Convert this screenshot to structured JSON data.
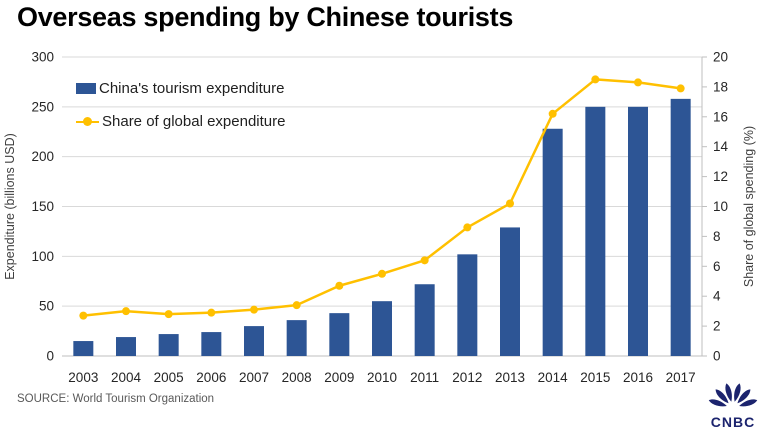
{
  "title": "Overseas spending by Chinese tourists",
  "source": "SOURCE: World Tourism Organization",
  "logo": {
    "text": "CNBC"
  },
  "colors": {
    "bar": "#2d5595",
    "line": "#ffc000",
    "grid": "#d9d9d9",
    "axis": "#bfbfbf",
    "tick_text": "#262626",
    "axis_title_text": "#3f3f3f",
    "source_text": "#595959",
    "logo_navy": "#1c246e",
    "title_text": "#000000"
  },
  "legend": [
    {
      "label": "China's tourism expenditure",
      "marker": "bar-swatch"
    },
    {
      "label": "Share of global expenditure",
      "marker": "line-dot-swatch"
    }
  ],
  "chart_data": {
    "type": "bar",
    "subtype": "bar+line dual axis",
    "title": "Overseas spending by Chinese tourists",
    "categories": [
      "2003",
      "2004",
      "2005",
      "2006",
      "2007",
      "2008",
      "2009",
      "2010",
      "2011",
      "2012",
      "2013",
      "2014",
      "2015",
      "2016",
      "2017"
    ],
    "series": [
      {
        "name": "China's tourism expenditure",
        "type": "bar",
        "axis": "left",
        "values": [
          15,
          19,
          22,
          24,
          30,
          36,
          43,
          55,
          72,
          102,
          129,
          228,
          250,
          250,
          258
        ]
      },
      {
        "name": "Share of global expenditure",
        "type": "line",
        "axis": "right",
        "values": [
          2.7,
          3.0,
          2.8,
          2.9,
          3.1,
          3.4,
          4.7,
          5.5,
          6.4,
          8.6,
          10.2,
          16.2,
          18.5,
          18.3,
          17.9
        ]
      }
    ],
    "left_axis": {
      "label": "Expenditure (billions USD)",
      "min": 0,
      "max": 300,
      "step": 50
    },
    "right_axis": {
      "label": "Share of global spending (%)",
      "min": 0,
      "max": 20,
      "step": 2
    },
    "grid": true,
    "legend_position": "top-left inside plot"
  }
}
